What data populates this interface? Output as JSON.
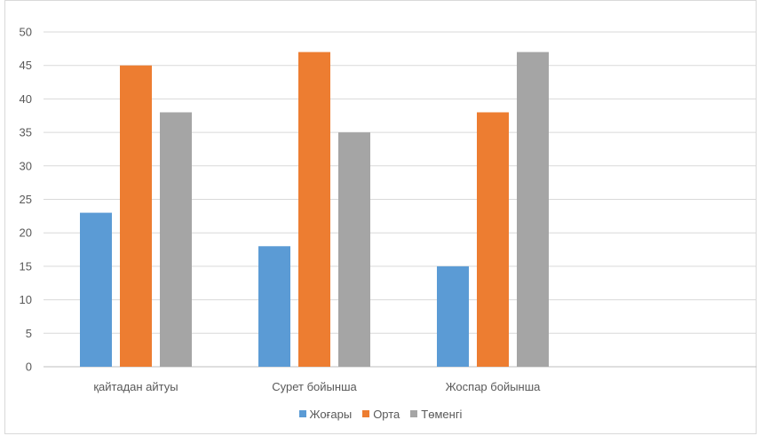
{
  "chart_data": {
    "type": "bar",
    "title": "",
    "xlabel": "",
    "ylabel": "",
    "categories": [
      "қайтадан айтуы",
      "Сурет бойынша",
      "Жоспар бойынша"
    ],
    "series": [
      {
        "name": "Жоғары",
        "color": "#5b9bd5",
        "values": [
          23,
          18,
          15
        ]
      },
      {
        "name": "Орта",
        "color": "#ed7d31",
        "values": [
          45,
          47,
          38
        ]
      },
      {
        "name": "Төменгі",
        "color": "#a5a5a5",
        "values": [
          38,
          35,
          47
        ]
      }
    ],
    "ylim": [
      0,
      50
    ],
    "yticks": [
      "0",
      "5",
      "10",
      "15",
      "20",
      "25",
      "30",
      "35",
      "40",
      "45",
      "50"
    ],
    "grid": true,
    "legend_position": "bottom"
  }
}
